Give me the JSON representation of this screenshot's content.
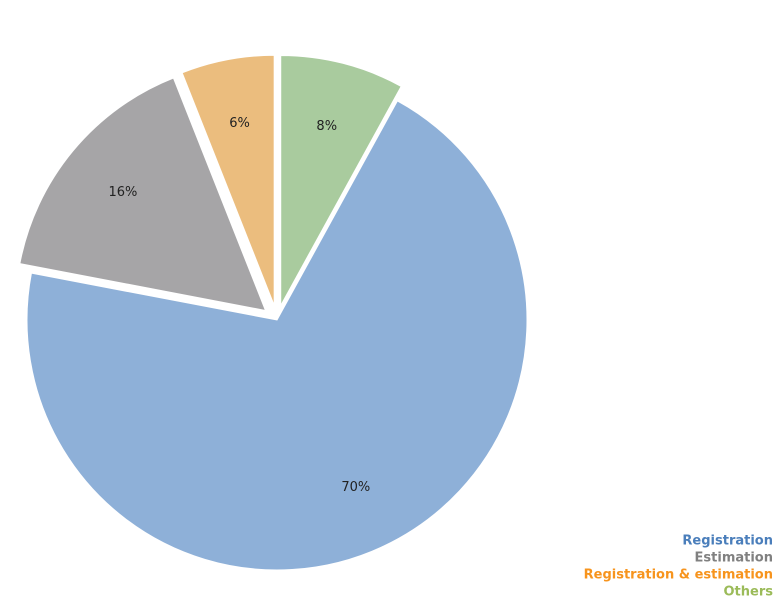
{
  "chart_data": {
    "type": "pie",
    "categories": [
      "Registration",
      "Estimation",
      "Registration & estimation",
      "Others"
    ],
    "values": [
      70,
      16,
      6,
      8
    ],
    "value_labels": [
      "70%",
      "16%",
      "6%",
      "8%"
    ],
    "colors": [
      "#8eb0d8",
      "#a6a5a7",
      "#ebbd7e",
      "#a9cb9e"
    ],
    "legend_colors": [
      "#4a7ebb",
      "#808080",
      "#f7941d",
      "#9bbb59"
    ],
    "legend": "bottom-right"
  }
}
